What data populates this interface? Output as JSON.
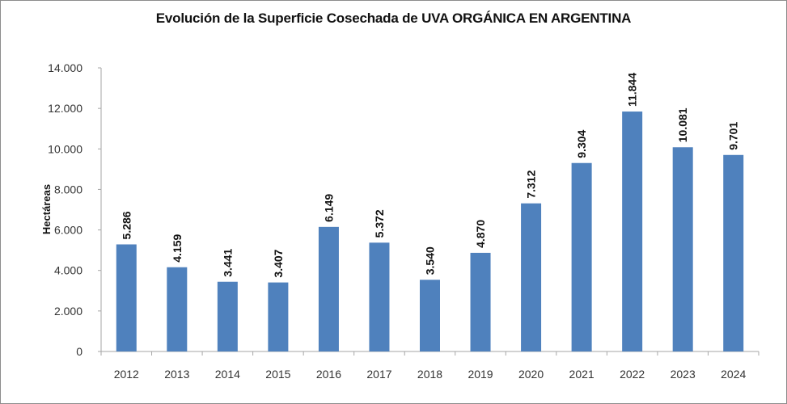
{
  "chart_data": {
    "type": "bar",
    "title": "Evolución de la Superficie Cosechada de UVA ORGÁNICA EN ARGENTINA",
    "xlabel": "",
    "ylabel": "Hectáreas",
    "ylim": [
      0,
      14000
    ],
    "yticks": [
      0,
      2000,
      4000,
      6000,
      8000,
      10000,
      12000,
      14000
    ],
    "ytick_labels": [
      "0",
      "2.000",
      "4.000",
      "6.000",
      "8.000",
      "10.000",
      "12.000",
      "14.000"
    ],
    "grid": false,
    "legend": "none",
    "categories": [
      "2012",
      "2013",
      "2014",
      "2015",
      "2016",
      "2017",
      "2018",
      "2019",
      "2020",
      "2021",
      "2022",
      "2023",
      "2024"
    ],
    "values": [
      5286,
      4159,
      3441,
      3407,
      6149,
      5372,
      3540,
      4870,
      7312,
      9304,
      11844,
      10081,
      9701
    ],
    "data_labels": [
      "5.286",
      "4.159",
      "3.441",
      "3.407",
      "6.149",
      "5.372",
      "3.540",
      "4.870",
      "7.312",
      "9.304",
      "11.844",
      "10.081",
      "9.701"
    ],
    "bar_color": "#4f81bd"
  }
}
